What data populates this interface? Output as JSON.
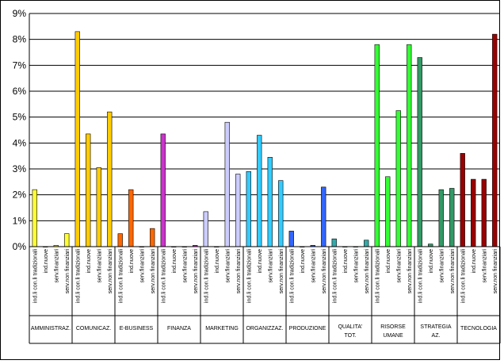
{
  "chart_data": {
    "type": "bar",
    "title": "",
    "xlabel": "",
    "ylabel": "",
    "ylim": [
      0,
      9
    ],
    "yticks": [
      "0%",
      "1%",
      "2%",
      "3%",
      "4%",
      "5%",
      "6%",
      "7%",
      "8%",
      "9%"
    ],
    "grid": true,
    "legend": "none",
    "groups": [
      {
        "name": "AMMINISTRAZ.",
        "color": "#ffff33",
        "categories": [
          "ind.li con.li tradizionali",
          "ind.nuove",
          "serv.finanziari",
          "serv.non finanziari"
        ],
        "values": [
          2.2,
          0.0,
          0.05,
          0.5
        ]
      },
      {
        "name": "COMUNICAZ.",
        "color": "#ffcc00",
        "categories": [
          "ind.li con.li tradizionali",
          "ind.nuove",
          "serv.finanziari",
          "serv.non finanziari"
        ],
        "values": [
          8.3,
          4.35,
          3.05,
          5.2
        ]
      },
      {
        "name": "E-BUSINESS",
        "color": "#ff6600",
        "categories": [
          "ind.li con.li tradizionali",
          "ind.nuove",
          "serv.finanziari",
          "serv.non finanziari"
        ],
        "values": [
          0.5,
          2.2,
          0.0,
          0.7
        ]
      },
      {
        "name": "FINANZA",
        "color": "#cc33cc",
        "categories": [
          "ind.li con.li tradizionali",
          "ind.nuove",
          "serv.finanziari",
          "serv.non finanziari"
        ],
        "values": [
          4.35,
          0.0,
          0.0,
          0.05
        ]
      },
      {
        "name": "MARKETING",
        "color": "#ccccff",
        "categories": [
          "ind.li con.li tradizionali",
          "ind.nuove",
          "serv.finanziari",
          "serv.non finanziari"
        ],
        "values": [
          1.35,
          0.0,
          4.8,
          2.8
        ]
      },
      {
        "name": "ORGANIZZAZ.",
        "color": "#33ccff",
        "categories": [
          "ind.li con.li tradizionali",
          "ind.nuove",
          "serv.finanziari",
          "serv.non finanziari"
        ],
        "values": [
          2.9,
          4.3,
          3.45,
          2.55
        ]
      },
      {
        "name": "PRODUZIONE",
        "color": "#3366ff",
        "categories": [
          "ind.li con.li tradizionali",
          "ind.nuove",
          "serv.finanziari",
          "serv.non finanziari"
        ],
        "values": [
          0.6,
          0.0,
          0.05,
          2.3
        ]
      },
      {
        "name": "QUALITA' TOT.",
        "color": "#33aaaa",
        "categories": [
          "ind.li con.li tradizionali",
          "ind.nuove",
          "serv.finanziari",
          "serv.non finanziari"
        ],
        "values": [
          0.3,
          0.0,
          0.0,
          0.25
        ]
      },
      {
        "name": "RISORSE UMANE",
        "color": "#33ff33",
        "categories": [
          "ind.li con.li tradizionali",
          "ind.nuove",
          "serv.finanziari",
          "serv.non finanziari"
        ],
        "values": [
          7.8,
          2.7,
          5.25,
          7.8
        ]
      },
      {
        "name": "STRATEGIA AZ.",
        "color": "#339966",
        "categories": [
          "ind.li con.li tradizionali",
          "ind.nuove",
          "serv.finanziari",
          "serv.non finanziari"
        ],
        "values": [
          7.3,
          0.1,
          2.2,
          2.25
        ]
      },
      {
        "name": "TECNOLOGIA",
        "color": "#990000",
        "categories": [
          "ind.li con.li tradizionali",
          "ind.nuove",
          "serv.finanziari",
          "serv.non finanziari"
        ],
        "values": [
          3.6,
          2.6,
          2.6,
          8.2
        ]
      }
    ]
  }
}
